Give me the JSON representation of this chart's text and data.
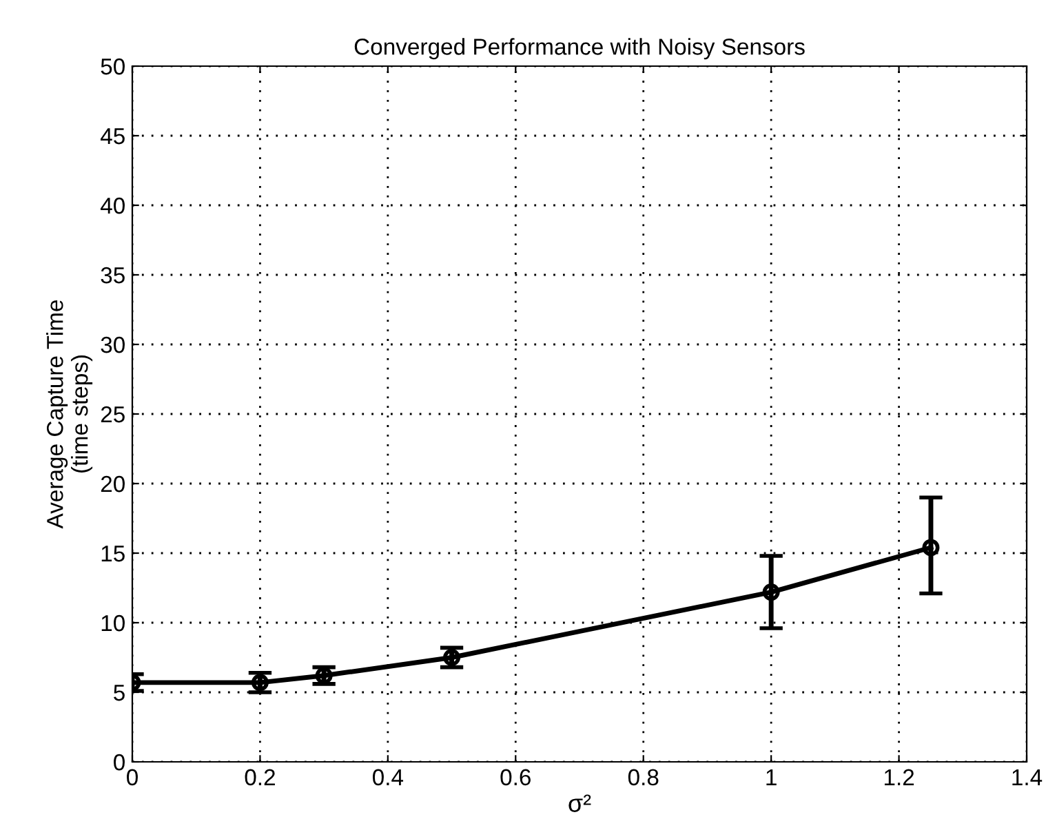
{
  "chart_data": {
    "type": "line",
    "title": "Converged Performance with Noisy Sensors",
    "xlabel": "σ²",
    "ylabel": "Average Capture Time\n(time steps)",
    "x": [
      0,
      0.2,
      0.3,
      0.5,
      1,
      1.25
    ],
    "values": [
      5.7,
      5.7,
      6.2,
      7.5,
      12.2,
      15.4
    ],
    "errors": [
      0.6,
      0.7,
      0.6,
      0.7,
      [
        9.6,
        14.8
      ],
      [
        12.1,
        19.0
      ]
    ],
    "color": "#000000",
    "marker": "circle",
    "line_style": "solid",
    "grid": true,
    "xlim": [
      0,
      1.4
    ],
    "xticks": [
      0,
      0.2,
      0.4,
      0.6,
      0.8,
      1,
      1.2,
      1.4
    ],
    "ylim": [
      0,
      50
    ],
    "yticks": [
      0,
      5,
      10,
      15,
      20,
      25,
      30,
      35,
      40,
      45,
      50
    ]
  }
}
